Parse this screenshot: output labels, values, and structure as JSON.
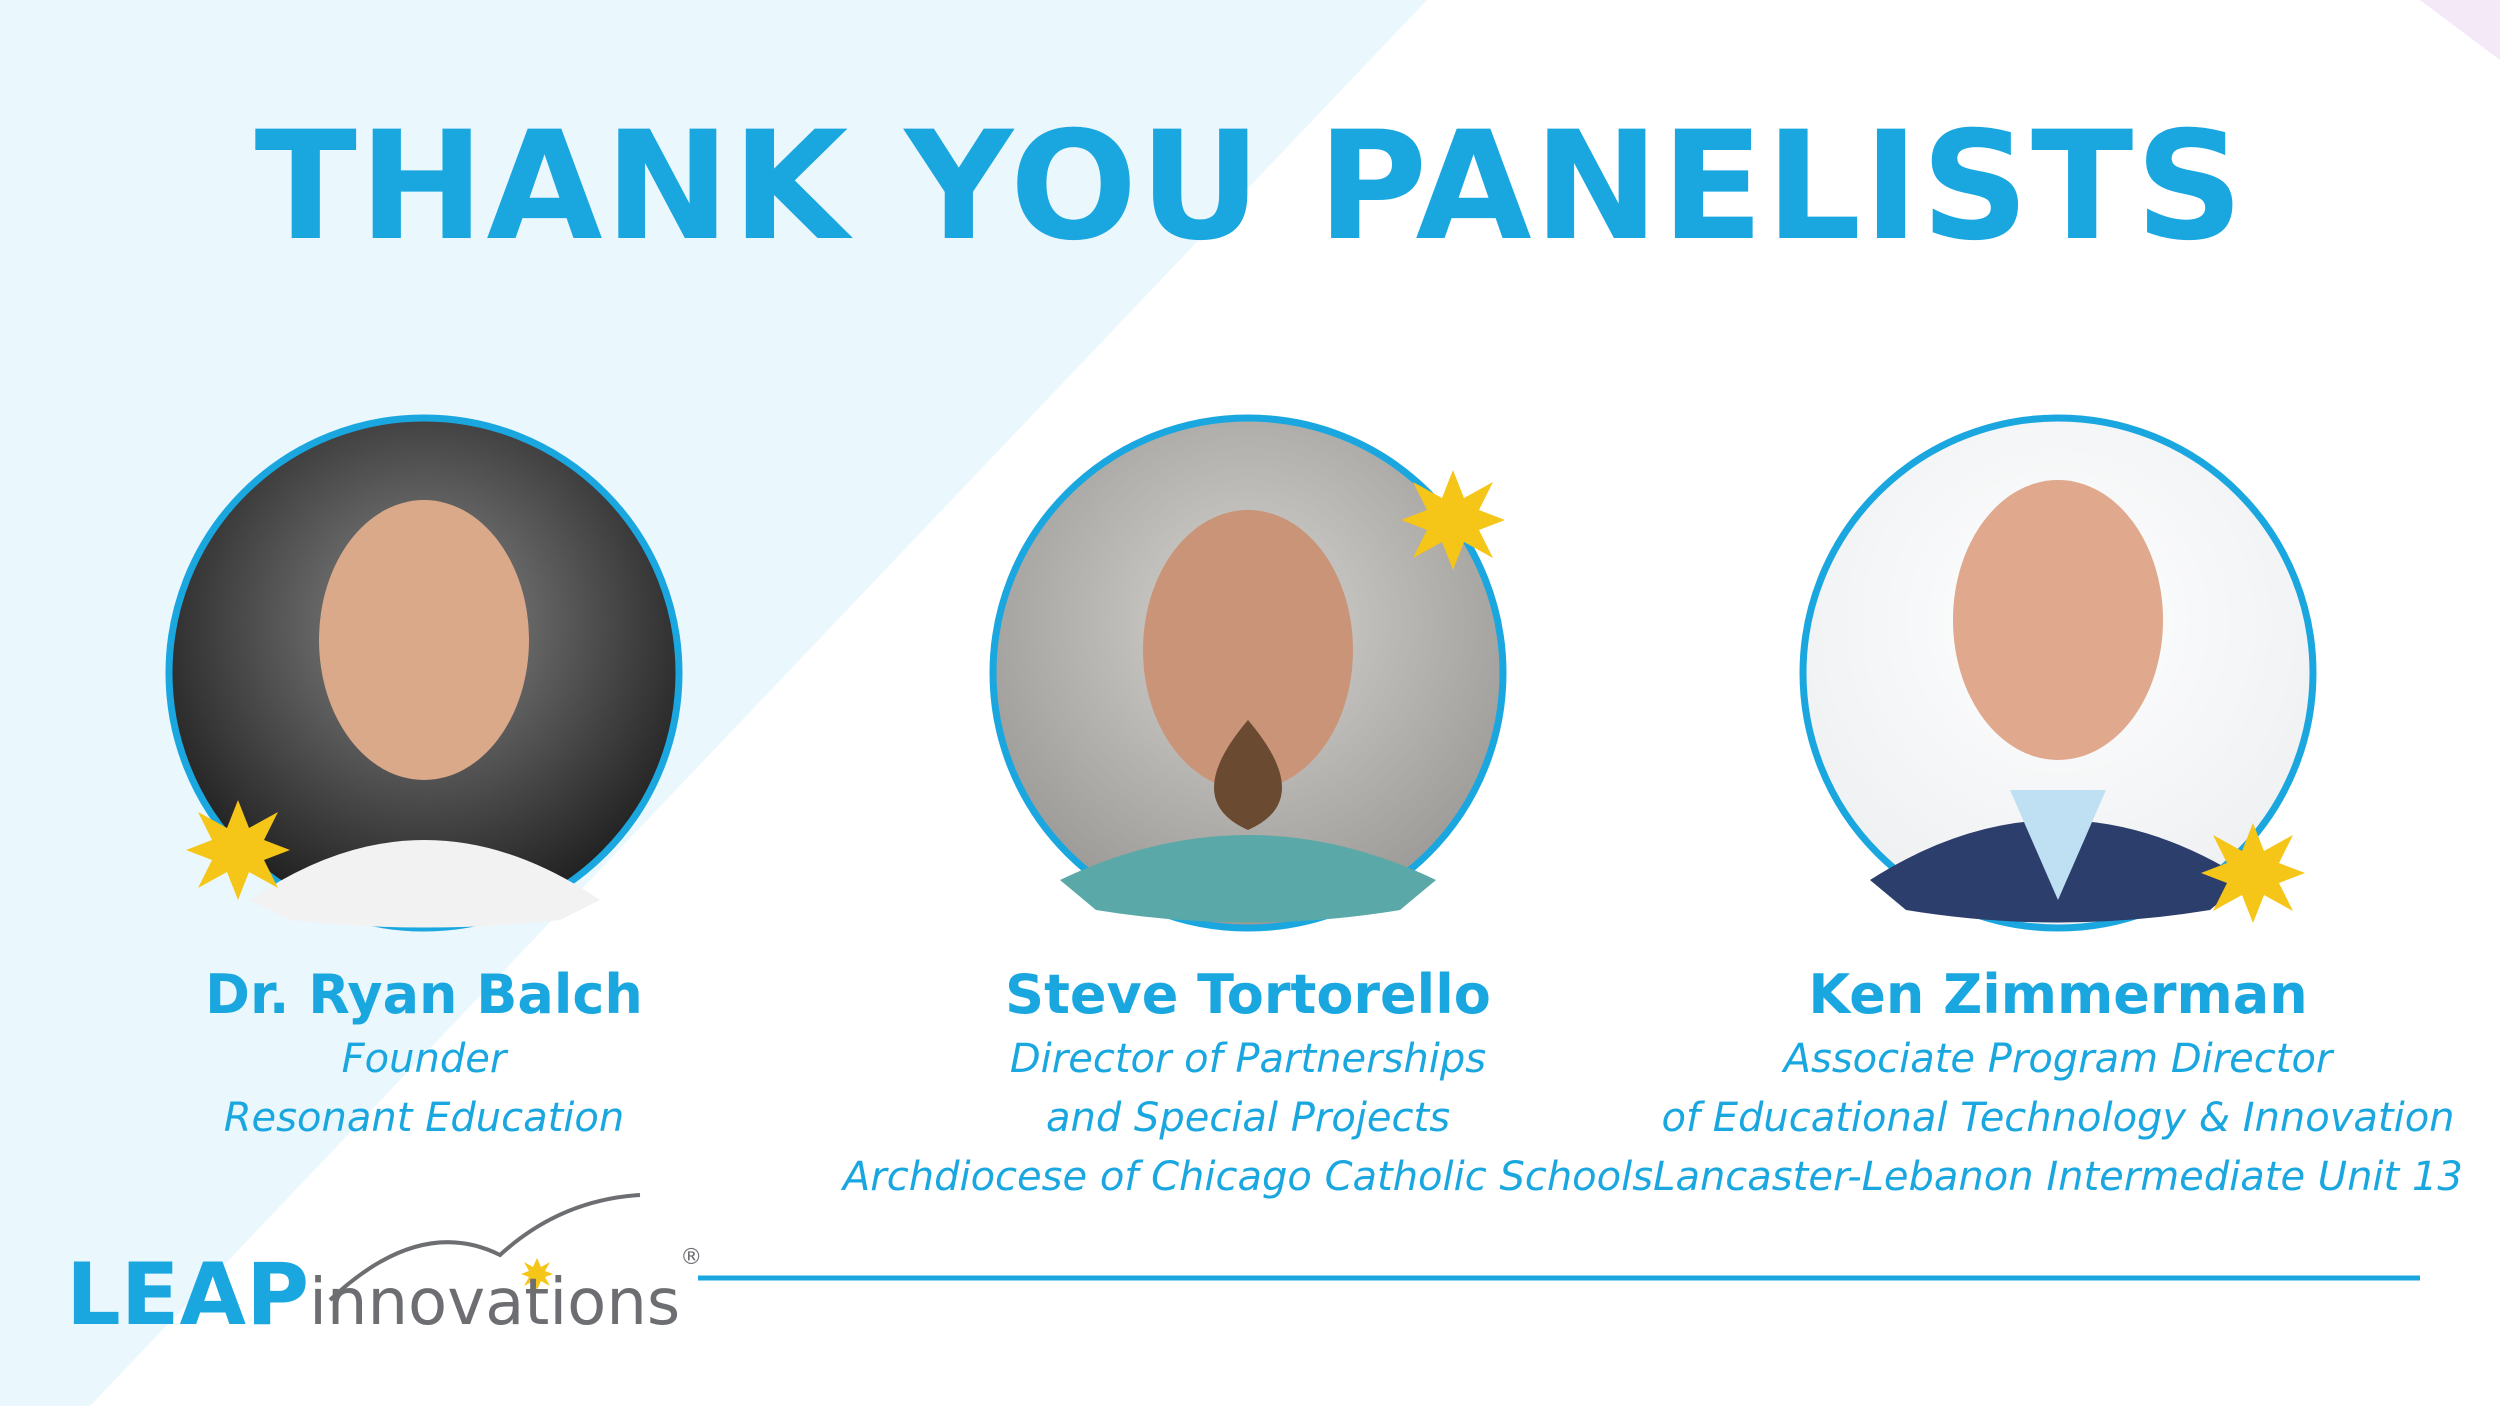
{
  "header": {
    "title": "THANK YOU PANELISTS"
  },
  "panelists": [
    {
      "name": "Dr. Ryan Balch",
      "lines": [
        "Founder",
        "Resonant Education"
      ]
    },
    {
      "name": "Steve Tortorello",
      "lines": [
        "Director of Partnerships",
        "and Special Projects",
        "Archdiocese of Chicago Catholic Schools"
      ]
    },
    {
      "name": "Ken Zimmerman",
      "lines": [
        "Associate Program Director",
        "of Educational Technology & Innovation",
        "Lancaster-Lebanon Intermediate Unit 13"
      ]
    }
  ],
  "logo": {
    "brand": "LEAP",
    "product": "innovations",
    "mark": "®"
  }
}
